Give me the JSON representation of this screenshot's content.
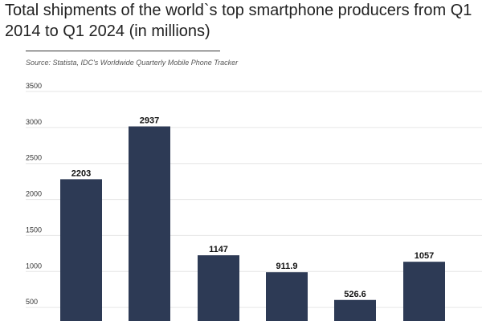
{
  "title": "Total shipments of the world`s top smartphone producers from Q1 2014 to Q1 2024 (in millions)",
  "source": "Source: Statista, IDC's Worldwide Quarterly Mobile Phone Tracker",
  "colors": {
    "bar": "#2d3a55",
    "text": "#222222",
    "grid": "#e6e6e6"
  },
  "chart_data": {
    "type": "bar",
    "title": "Total shipments of the world`s top smartphone producers from Q1 2014 to Q1 2024 (in millions)",
    "xlabel": "",
    "ylabel": "",
    "ylim": [
      0,
      3500
    ],
    "yticks": [
      500,
      1000,
      1500,
      2000,
      2500,
      3000,
      3500
    ],
    "ytick_labels": [
      "500",
      "1000",
      "1500",
      "2000",
      "2500",
      "3000",
      "3500"
    ],
    "values": [
      2203,
      2937,
      1147,
      911.9,
      526.6,
      1057
    ],
    "value_labels": [
      "2203",
      "2937",
      "1147",
      "911.9",
      "526.6",
      "1057"
    ],
    "grid": true,
    "legend": "none"
  }
}
